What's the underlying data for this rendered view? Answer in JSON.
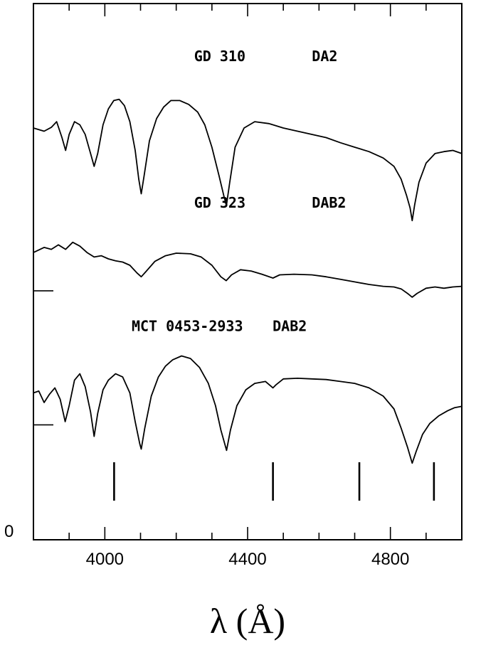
{
  "chart_data": {
    "type": "line",
    "xlabel": "λ (Å)",
    "xlim": [
      3800,
      5000
    ],
    "ylim": [
      0,
      8.4
    ],
    "x_ticks": [
      4000,
      4400,
      4800
    ],
    "y_ticks": [
      0
    ],
    "grid": false,
    "series": [
      {
        "name": "GD 310 DA2",
        "label_parts": [
          "GD 310",
          "DA2"
        ],
        "zero_level": null,
        "points": [
          [
            3800,
            6.45
          ],
          [
            3830,
            6.4
          ],
          [
            3850,
            6.46
          ],
          [
            3865,
            6.55
          ],
          [
            3880,
            6.3
          ],
          [
            3890,
            6.1
          ],
          [
            3900,
            6.35
          ],
          [
            3915,
            6.55
          ],
          [
            3930,
            6.5
          ],
          [
            3945,
            6.35
          ],
          [
            3960,
            6.05
          ],
          [
            3970,
            5.85
          ],
          [
            3980,
            6.05
          ],
          [
            3995,
            6.5
          ],
          [
            4010,
            6.75
          ],
          [
            4025,
            6.88
          ],
          [
            4040,
            6.9
          ],
          [
            4055,
            6.8
          ],
          [
            4070,
            6.55
          ],
          [
            4085,
            6.1
          ],
          [
            4095,
            5.65
          ],
          [
            4102,
            5.42
          ],
          [
            4110,
            5.7
          ],
          [
            4125,
            6.25
          ],
          [
            4145,
            6.6
          ],
          [
            4165,
            6.78
          ],
          [
            4185,
            6.88
          ],
          [
            4210,
            6.88
          ],
          [
            4235,
            6.82
          ],
          [
            4260,
            6.7
          ],
          [
            4280,
            6.5
          ],
          [
            4300,
            6.15
          ],
          [
            4320,
            5.7
          ],
          [
            4335,
            5.35
          ],
          [
            4341,
            5.25
          ],
          [
            4350,
            5.6
          ],
          [
            4365,
            6.15
          ],
          [
            4390,
            6.45
          ],
          [
            4420,
            6.55
          ],
          [
            4460,
            6.52
          ],
          [
            4500,
            6.45
          ],
          [
            4540,
            6.4
          ],
          [
            4580,
            6.35
          ],
          [
            4620,
            6.3
          ],
          [
            4660,
            6.22
          ],
          [
            4700,
            6.15
          ],
          [
            4740,
            6.08
          ],
          [
            4780,
            5.98
          ],
          [
            4810,
            5.85
          ],
          [
            4830,
            5.65
          ],
          [
            4845,
            5.4
          ],
          [
            4855,
            5.2
          ],
          [
            4861,
            5.0
          ],
          [
            4868,
            5.25
          ],
          [
            4880,
            5.6
          ],
          [
            4900,
            5.9
          ],
          [
            4925,
            6.05
          ],
          [
            4950,
            6.08
          ],
          [
            4975,
            6.1
          ],
          [
            5000,
            6.05
          ]
        ]
      },
      {
        "name": "GD 323 DAB2",
        "label_parts": [
          "GD 323",
          "DAB2"
        ],
        "zero_level": 3.9,
        "points": [
          [
            3800,
            4.5
          ],
          [
            3830,
            4.58
          ],
          [
            3850,
            4.55
          ],
          [
            3870,
            4.62
          ],
          [
            3890,
            4.55
          ],
          [
            3910,
            4.66
          ],
          [
            3930,
            4.6
          ],
          [
            3950,
            4.5
          ],
          [
            3970,
            4.43
          ],
          [
            3990,
            4.45
          ],
          [
            4010,
            4.4
          ],
          [
            4030,
            4.37
          ],
          [
            4050,
            4.35
          ],
          [
            4070,
            4.3
          ],
          [
            4090,
            4.18
          ],
          [
            4102,
            4.12
          ],
          [
            4115,
            4.2
          ],
          [
            4140,
            4.36
          ],
          [
            4170,
            4.45
          ],
          [
            4200,
            4.49
          ],
          [
            4240,
            4.48
          ],
          [
            4270,
            4.43
          ],
          [
            4300,
            4.3
          ],
          [
            4325,
            4.12
          ],
          [
            4340,
            4.06
          ],
          [
            4355,
            4.15
          ],
          [
            4380,
            4.23
          ],
          [
            4410,
            4.21
          ],
          [
            4440,
            4.16
          ],
          [
            4471,
            4.1
          ],
          [
            4490,
            4.15
          ],
          [
            4530,
            4.16
          ],
          [
            4580,
            4.15
          ],
          [
            4620,
            4.12
          ],
          [
            4660,
            4.08
          ],
          [
            4700,
            4.04
          ],
          [
            4740,
            4.0
          ],
          [
            4780,
            3.97
          ],
          [
            4810,
            3.96
          ],
          [
            4830,
            3.93
          ],
          [
            4850,
            3.85
          ],
          [
            4861,
            3.8
          ],
          [
            4875,
            3.86
          ],
          [
            4900,
            3.94
          ],
          [
            4925,
            3.96
          ],
          [
            4950,
            3.94
          ],
          [
            4975,
            3.96
          ],
          [
            5000,
            3.97
          ]
        ]
      },
      {
        "name": "MCT 0453-2933 DAB2",
        "label_parts": [
          "MCT 0453-2933",
          "DAB2"
        ],
        "zero_level": 1.8,
        "points": [
          [
            3800,
            2.3
          ],
          [
            3815,
            2.33
          ],
          [
            3830,
            2.15
          ],
          [
            3845,
            2.28
          ],
          [
            3860,
            2.38
          ],
          [
            3875,
            2.2
          ],
          [
            3889,
            1.85
          ],
          [
            3900,
            2.1
          ],
          [
            3915,
            2.5
          ],
          [
            3930,
            2.6
          ],
          [
            3945,
            2.4
          ],
          [
            3960,
            2.0
          ],
          [
            3970,
            1.62
          ],
          [
            3980,
            1.98
          ],
          [
            3995,
            2.35
          ],
          [
            4010,
            2.5
          ],
          [
            4030,
            2.6
          ],
          [
            4050,
            2.55
          ],
          [
            4070,
            2.3
          ],
          [
            4085,
            1.85
          ],
          [
            4098,
            1.5
          ],
          [
            4102,
            1.42
          ],
          [
            4112,
            1.75
          ],
          [
            4130,
            2.25
          ],
          [
            4150,
            2.55
          ],
          [
            4170,
            2.72
          ],
          [
            4190,
            2.82
          ],
          [
            4215,
            2.88
          ],
          [
            4240,
            2.84
          ],
          [
            4265,
            2.7
          ],
          [
            4290,
            2.45
          ],
          [
            4310,
            2.1
          ],
          [
            4325,
            1.72
          ],
          [
            4341,
            1.4
          ],
          [
            4352,
            1.72
          ],
          [
            4370,
            2.1
          ],
          [
            4395,
            2.35
          ],
          [
            4420,
            2.45
          ],
          [
            4450,
            2.48
          ],
          [
            4471,
            2.38
          ],
          [
            4480,
            2.43
          ],
          [
            4500,
            2.52
          ],
          [
            4540,
            2.53
          ],
          [
            4580,
            2.52
          ],
          [
            4620,
            2.51
          ],
          [
            4660,
            2.48
          ],
          [
            4700,
            2.45
          ],
          [
            4740,
            2.38
          ],
          [
            4780,
            2.25
          ],
          [
            4810,
            2.05
          ],
          [
            4830,
            1.75
          ],
          [
            4848,
            1.45
          ],
          [
            4861,
            1.2
          ],
          [
            4872,
            1.38
          ],
          [
            4890,
            1.65
          ],
          [
            4910,
            1.82
          ],
          [
            4935,
            1.94
          ],
          [
            4960,
            2.02
          ],
          [
            4980,
            2.07
          ],
          [
            5000,
            2.09
          ]
        ]
      }
    ],
    "line_markers": [
      4026,
      4471,
      4713,
      4922
    ]
  }
}
